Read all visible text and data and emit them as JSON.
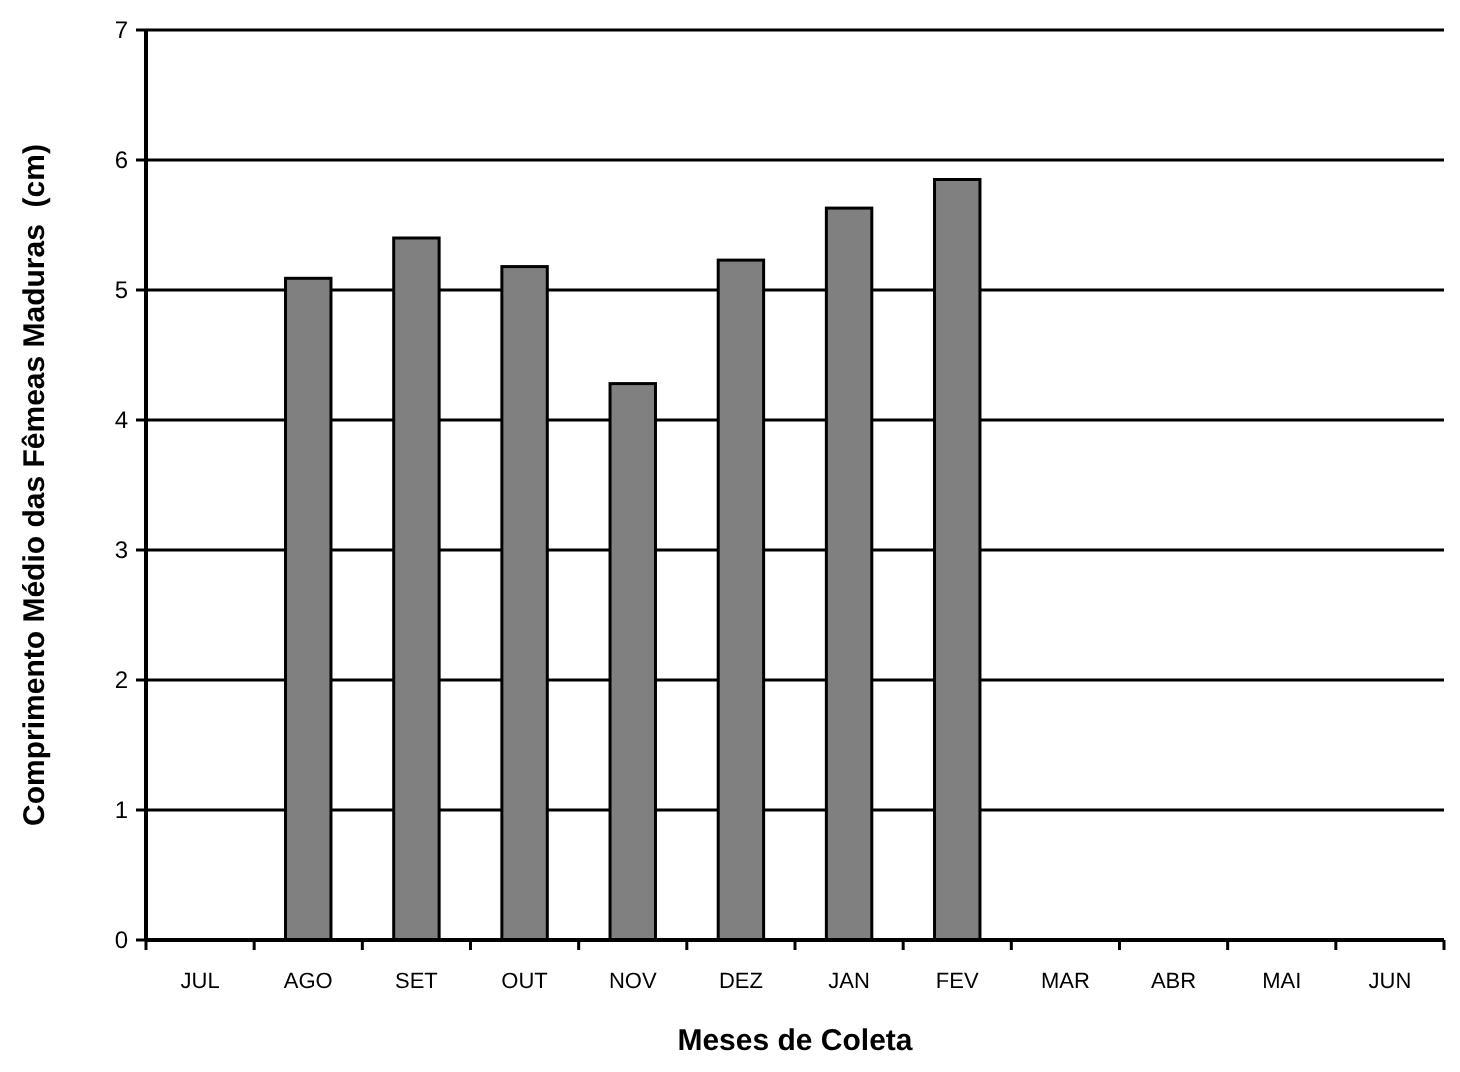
{
  "chart_data": {
    "type": "bar",
    "xlabel": "Meses de Coleta",
    "ylabel": "Comprimento Médio das Fêmeas Maduras  (cm)",
    "categories": [
      "JUL",
      "AGO",
      "SET",
      "OUT",
      "NOV",
      "DEZ",
      "JAN",
      "FEV",
      "MAR",
      "ABR",
      "MAI",
      "JUN"
    ],
    "values": [
      null,
      5.09,
      5.4,
      5.18,
      4.28,
      5.23,
      5.63,
      5.85,
      null,
      null,
      null,
      null
    ],
    "color": "#808080",
    "ylim": [
      0,
      7
    ],
    "yticks": [
      0,
      1,
      2,
      3,
      4,
      5,
      6,
      7
    ],
    "grid": "y"
  }
}
